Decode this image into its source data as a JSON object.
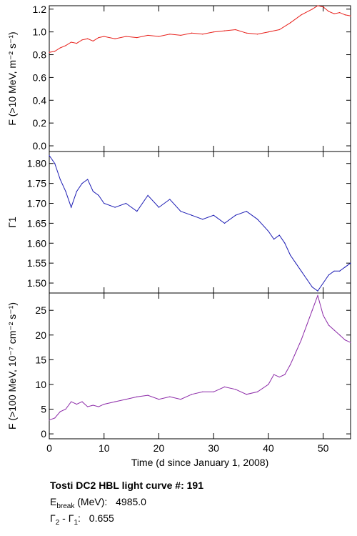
{
  "caption": {
    "title": "Tosti DC2 HBL light curve #:  191",
    "ebreak_symbol": "E",
    "ebreak_sub": "break",
    "ebreak_unit": "(MeV):",
    "ebreak_value": "4985.0",
    "gamma_a": "Γ",
    "gamma_a_sub": "2",
    "gamma_sep": " - ",
    "gamma_b": "Γ",
    "gamma_b_sub": "1",
    "gamma_colon": ":",
    "gamma_value": "0.655"
  },
  "chart_data": [
    {
      "type": "line",
      "ylabel": "F (>10 MeV, m⁻² s⁻¹)",
      "ylim": [
        -0.05,
        1.23
      ],
      "yticks": [
        "0.0",
        "0.2",
        "0.4",
        "0.6",
        "0.8",
        "1.0",
        "1.2"
      ],
      "xlim": [
        0,
        55
      ],
      "color": "#e8211c",
      "series": [
        {
          "x": [
            0,
            1,
            2,
            3,
            4,
            5,
            6,
            7,
            8,
            9,
            10,
            12,
            14,
            16,
            18,
            20,
            22,
            24,
            26,
            28,
            30,
            32,
            34,
            36,
            38,
            40,
            42,
            44,
            46,
            48,
            49,
            50,
            51,
            52,
            53,
            54,
            55
          ],
          "values": [
            0.82,
            0.83,
            0.86,
            0.88,
            0.91,
            0.9,
            0.93,
            0.94,
            0.92,
            0.95,
            0.96,
            0.94,
            0.96,
            0.95,
            0.97,
            0.96,
            0.98,
            0.97,
            0.99,
            0.98,
            1.0,
            1.01,
            1.02,
            0.99,
            0.98,
            1.0,
            1.02,
            1.08,
            1.15,
            1.2,
            1.23,
            1.22,
            1.18,
            1.16,
            1.17,
            1.15,
            1.14
          ]
        }
      ]
    },
    {
      "type": "line",
      "ylabel": "Γ1",
      "ylim": [
        1.475,
        1.83
      ],
      "yticks": [
        "1.50",
        "1.55",
        "1.60",
        "1.65",
        "1.70",
        "1.75",
        "1.80"
      ],
      "xlim": [
        0,
        55
      ],
      "color": "#1c1cb4",
      "series": [
        {
          "x": [
            0,
            1,
            2,
            3,
            4,
            5,
            6,
            7,
            8,
            9,
            10,
            12,
            14,
            16,
            18,
            20,
            22,
            24,
            26,
            28,
            30,
            32,
            34,
            36,
            38,
            40,
            41,
            42,
            43,
            44,
            45,
            46,
            47,
            48,
            49,
            50,
            51,
            52,
            53,
            54,
            55
          ],
          "values": [
            1.82,
            1.8,
            1.76,
            1.73,
            1.69,
            1.73,
            1.75,
            1.76,
            1.73,
            1.72,
            1.7,
            1.69,
            1.7,
            1.68,
            1.72,
            1.69,
            1.71,
            1.68,
            1.67,
            1.66,
            1.67,
            1.65,
            1.67,
            1.68,
            1.66,
            1.63,
            1.61,
            1.62,
            1.6,
            1.57,
            1.55,
            1.53,
            1.51,
            1.49,
            1.48,
            1.5,
            1.52,
            1.53,
            1.53,
            1.54,
            1.55
          ]
        }
      ]
    },
    {
      "type": "line",
      "ylabel": "F (>100 MeV, 10⁻⁷ cm⁻² s⁻¹)",
      "ylim": [
        -1,
        28.5
      ],
      "yticks": [
        "0",
        "5",
        "10",
        "15",
        "20",
        "25"
      ],
      "xlim": [
        0,
        55
      ],
      "xlabel": "Time (d since January 1, 2008)",
      "xticks": [
        "0",
        "10",
        "20",
        "30",
        "40",
        "50"
      ],
      "color": "#8c2aa8",
      "series": [
        {
          "x": [
            0,
            1,
            2,
            3,
            4,
            5,
            6,
            7,
            8,
            9,
            10,
            12,
            14,
            16,
            18,
            20,
            22,
            24,
            26,
            28,
            30,
            32,
            34,
            36,
            38,
            40,
            41,
            42,
            43,
            44,
            45,
            46,
            47,
            48,
            49,
            50,
            51,
            52,
            53,
            54,
            55
          ],
          "values": [
            2.8,
            3.2,
            4.5,
            5.0,
            6.5,
            6.0,
            6.5,
            5.5,
            5.8,
            5.5,
            6.0,
            6.5,
            7.0,
            7.5,
            7.8,
            7.0,
            7.5,
            7.0,
            8.0,
            8.5,
            8.5,
            9.5,
            9.0,
            8.0,
            8.5,
            10.0,
            12.0,
            11.5,
            12.0,
            14.0,
            16.5,
            19.0,
            22.0,
            25.0,
            28.0,
            24.0,
            22.0,
            21.0,
            20.0,
            19.0,
            18.5
          ]
        }
      ]
    }
  ]
}
